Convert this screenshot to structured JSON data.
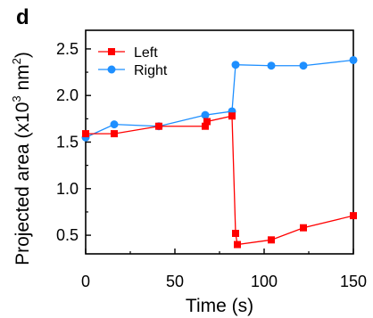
{
  "chart_data": {
    "type": "line",
    "panel_label": "d",
    "xlabel": "Time (s)",
    "ylabel_main": "Projected area (x10",
    "ylabel_exp1": "3",
    "ylabel_unit": " nm",
    "ylabel_exp2": "2",
    "ylabel_close": ")",
    "xlim": [
      0,
      150
    ],
    "ylim": [
      0.3,
      2.7
    ],
    "xticks": [
      0,
      50,
      100,
      150
    ],
    "xtick_labels": [
      "0",
      "50",
      "100",
      "150"
    ],
    "yticks": [
      0.5,
      1.0,
      1.5,
      2.0,
      2.5
    ],
    "ytick_labels": [
      "0.5",
      "1.0",
      "1.5",
      "2.0",
      "2.5"
    ],
    "grid": false,
    "legend_position": "top-left",
    "series": [
      {
        "name": "Left",
        "color": "#ff0000",
        "marker": "square",
        "x": [
          0,
          16,
          41,
          67,
          68,
          82,
          84,
          85,
          104,
          122,
          150
        ],
        "y": [
          1.59,
          1.59,
          1.67,
          1.67,
          1.72,
          1.78,
          0.52,
          0.4,
          0.45,
          0.58,
          0.71
        ]
      },
      {
        "name": "Right",
        "color": "#1e8fff",
        "marker": "circle",
        "x": [
          0,
          16,
          41,
          67,
          82,
          84,
          104,
          122,
          150
        ],
        "y": [
          1.55,
          1.69,
          1.67,
          1.79,
          1.83,
          2.33,
          2.32,
          2.32,
          2.38
        ]
      }
    ]
  }
}
